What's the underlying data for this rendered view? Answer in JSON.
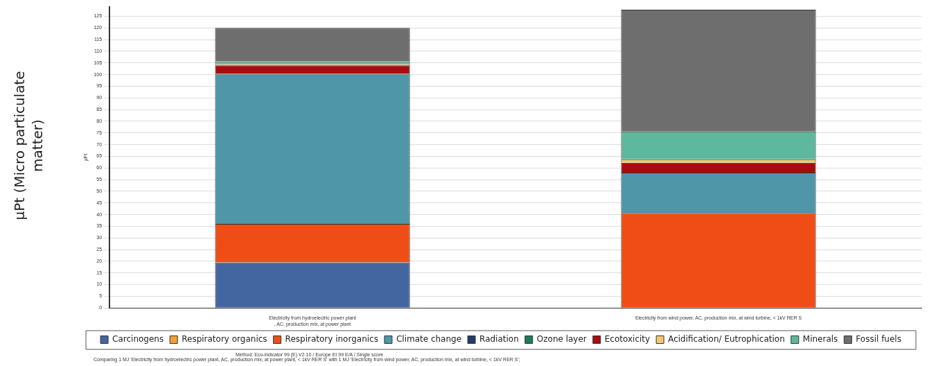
{
  "chart_data": {
    "type": "bar",
    "stacked": true,
    "ylabel": "μPt (Micro particulate matter)",
    "categories": [
      "Electricity from hydroelectric power plant\n, AC, production mix, at power plant",
      "Electricity from wind power, AC, production mix, at wind turbine, < 1kV RER S"
    ],
    "series": [
      {
        "name": "Carcinogens",
        "color": "#4466a0",
        "values": [
          19.5,
          null
        ]
      },
      {
        "name": "Respiratory organics",
        "color": "#f0a030",
        "values": [
          0,
          0
        ]
      },
      {
        "name": "Respiratory inorganics",
        "color": "#ee4e16",
        "values": [
          16.5,
          40.7
        ]
      },
      {
        "name": "Climate change",
        "color": "#4e96a8",
        "values": [
          64.3,
          17.3
        ]
      },
      {
        "name": "Radiation",
        "color": "#243a6a",
        "values": [
          0,
          0
        ]
      },
      {
        "name": "Ozone layer",
        "color": "#1e7a5e",
        "values": [
          0,
          0
        ]
      },
      {
        "name": "Ecotoxicity",
        "color": "#a80c0c",
        "values": [
          3.7,
          4.2
        ]
      },
      {
        "name": "Acidification/ Eutrophication",
        "color": "#f2c870",
        "values": [
          0.5,
          1.5
        ]
      },
      {
        "name": "Minerals",
        "color": "#5eb89e",
        "values": [
          1.2,
          11.9
        ]
      },
      {
        "name": "Fossil fuels",
        "color": "#6e6e6e",
        "values": [
          14.3,
          52.2
        ]
      }
    ],
    "ylim": [
      0,
      129
    ],
    "yticks": [
      0,
      5,
      10,
      15,
      20,
      25,
      30,
      35,
      40,
      45,
      50,
      55,
      60,
      65,
      70,
      75,
      80,
      85,
      90,
      95,
      100,
      105,
      110,
      115,
      120,
      125
    ],
    "grid": "y",
    "legend": "bottom",
    "annotations": [
      "μPt",
      "Method: Eco-indicator 99 (E) V2.10 / Europe EI 99 E/A / Single score",
      "Comparing 1 MJ 'Electricity from hydroelectric power plant, AC, production mix, at power plant, < 1kV RER S' with 1 MJ 'Electricity from wind power, AC, production mix, at wind turbine, < 1kV RER S';"
    ]
  }
}
